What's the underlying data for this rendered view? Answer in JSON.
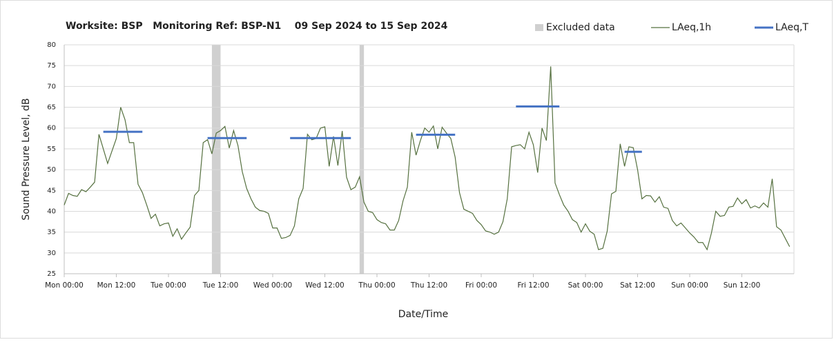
{
  "chart_data": {
    "type": "line",
    "title": "Worksite: BSP   Monitoring Ref: BSP-N1    09 Sep 2024 to 15 Sep 2024",
    "xlabel": "Date/Time",
    "ylabel": "Sound Pressure Level, dB",
    "xlim": [
      0,
      168
    ],
    "xticks": [
      {
        "value": 0,
        "label": "Mon 00:00"
      },
      {
        "value": 12,
        "label": "Mon 12:00"
      },
      {
        "value": 24,
        "label": "Tue 00:00"
      },
      {
        "value": 36,
        "label": "Tue 12:00"
      },
      {
        "value": 48,
        "label": "Wed 00:00"
      },
      {
        "value": 60,
        "label": "Wed 12:00"
      },
      {
        "value": 72,
        "label": "Thu 00:00"
      },
      {
        "value": 84,
        "label": "Thu 12:00"
      },
      {
        "value": 96,
        "label": "Fri 00:00"
      },
      {
        "value": 108,
        "label": "Fri 12:00"
      },
      {
        "value": 120,
        "label": "Sat 00:00"
      },
      {
        "value": 132,
        "label": "Sat 12:00"
      },
      {
        "value": 144,
        "label": "Sun 00:00"
      },
      {
        "value": 156,
        "label": "Sun 12:00"
      }
    ],
    "ylim": [
      25,
      80
    ],
    "yticks": [
      25,
      30,
      35,
      40,
      45,
      50,
      55,
      60,
      65,
      70,
      75,
      80
    ],
    "grid": true,
    "legend": "top-right",
    "excluded": {
      "name": "Excluded data",
      "color": "#d0d0d0",
      "ranges": [
        [
          34,
          36
        ],
        [
          68,
          69
        ]
      ]
    },
    "series": [
      {
        "name": "LAeq,1h",
        "color": "#55703f",
        "x": [
          0,
          1,
          2,
          3,
          4,
          5,
          6,
          7,
          8,
          9,
          10,
          11,
          12,
          13,
          14,
          15,
          16,
          17,
          18,
          19,
          20,
          21,
          22,
          23,
          24,
          25,
          26,
          27,
          28,
          29,
          30,
          31,
          32,
          33,
          34,
          35,
          36,
          37,
          38,
          39,
          40,
          41,
          42,
          43,
          44,
          45,
          46,
          47,
          48,
          49,
          50,
          51,
          52,
          53,
          54,
          55,
          56,
          57,
          58,
          59,
          60,
          61,
          62,
          63,
          64,
          65,
          66,
          67,
          68,
          69,
          70,
          71,
          72,
          73,
          74,
          75,
          76,
          77,
          78,
          79,
          80,
          81,
          82,
          83,
          84,
          85,
          86,
          87,
          88,
          89,
          90,
          91,
          92,
          93,
          94,
          95,
          96,
          97,
          98,
          99,
          100,
          101,
          102,
          103,
          104,
          105,
          106,
          107,
          108,
          109,
          110,
          111,
          112,
          113,
          114,
          115,
          116,
          117,
          118,
          119,
          120,
          121,
          122,
          123,
          124,
          125,
          126,
          127,
          128,
          129,
          130,
          131,
          132,
          133,
          134,
          135,
          136,
          137,
          138,
          139,
          140,
          141,
          142,
          143,
          144,
          145,
          146,
          147,
          148,
          149,
          150,
          151,
          152,
          153,
          154,
          155,
          156,
          157,
          158,
          159,
          160,
          161,
          162,
          163,
          164,
          165,
          166,
          167
        ],
        "values": [
          41.5,
          44.3,
          43.8,
          43.6,
          45.2,
          44.7,
          45.8,
          47,
          58.5,
          55,
          51.5,
          54.5,
          57.5,
          65,
          62,
          56.5,
          56.5,
          46.5,
          44.5,
          41.5,
          38.3,
          39.3,
          36.5,
          37,
          37.2,
          34,
          35.8,
          33.3,
          34.8,
          36.2,
          43.8,
          45,
          56.5,
          57.2,
          53.8,
          58.8,
          59.4,
          60.4,
          55.2,
          59.4,
          55.8,
          49.5,
          45.5,
          43,
          41,
          40.2,
          40,
          39.5,
          36,
          36,
          33.5,
          33.7,
          34.2,
          36.5,
          43,
          45.5,
          58.5,
          57.2,
          57.5,
          60,
          60.3,
          50.8,
          58,
          51,
          59.3,
          48.2,
          45.2,
          45.8,
          48.3,
          42.2,
          40,
          39.7,
          38,
          37.3,
          37,
          35.5,
          35.5,
          37.8,
          42.5,
          45.8,
          59,
          53.5,
          57,
          60,
          59,
          60.5,
          55,
          60.2,
          58.8,
          57.5,
          53,
          44.5,
          40.5,
          40,
          39.5,
          37.8,
          36.8,
          35.3,
          35,
          34.5,
          35,
          37.5,
          43,
          55.5,
          55.8,
          56,
          55,
          59,
          56,
          49.3,
          60,
          57,
          74.8,
          46.8,
          44,
          41.5,
          40,
          38,
          37.3,
          35,
          37,
          35.2,
          34.5,
          30.8,
          31.1,
          35.2,
          44.2,
          44.8,
          56.2,
          50.8,
          55.5,
          55.3,
          50,
          43,
          43.8,
          43.7,
          42.2,
          43.5,
          41,
          40.7,
          37.8,
          36.5,
          37.2,
          36,
          34.8,
          33.8,
          32.5,
          32.5,
          30.8,
          34.8,
          40,
          38.8,
          39,
          41,
          41.2,
          43.2,
          41.8,
          42.8,
          40.8,
          41.3,
          40.8,
          42,
          41,
          47.8,
          36.3,
          35.5,
          33.5,
          31.5
        ]
      },
      {
        "name": "LAeq,T",
        "color": "#4472c4",
        "segments": [
          {
            "x": [
              9,
              18
            ],
            "value": 59.1
          },
          {
            "x": [
              33,
              42
            ],
            "value": 57.6
          },
          {
            "x": [
              52,
              66
            ],
            "value": 57.6
          },
          {
            "x": [
              81,
              90
            ],
            "value": 58.4
          },
          {
            "x": [
              104,
              114
            ],
            "value": 65.2
          },
          {
            "x": [
              129,
              133
            ],
            "value": 54.3
          }
        ]
      }
    ]
  }
}
